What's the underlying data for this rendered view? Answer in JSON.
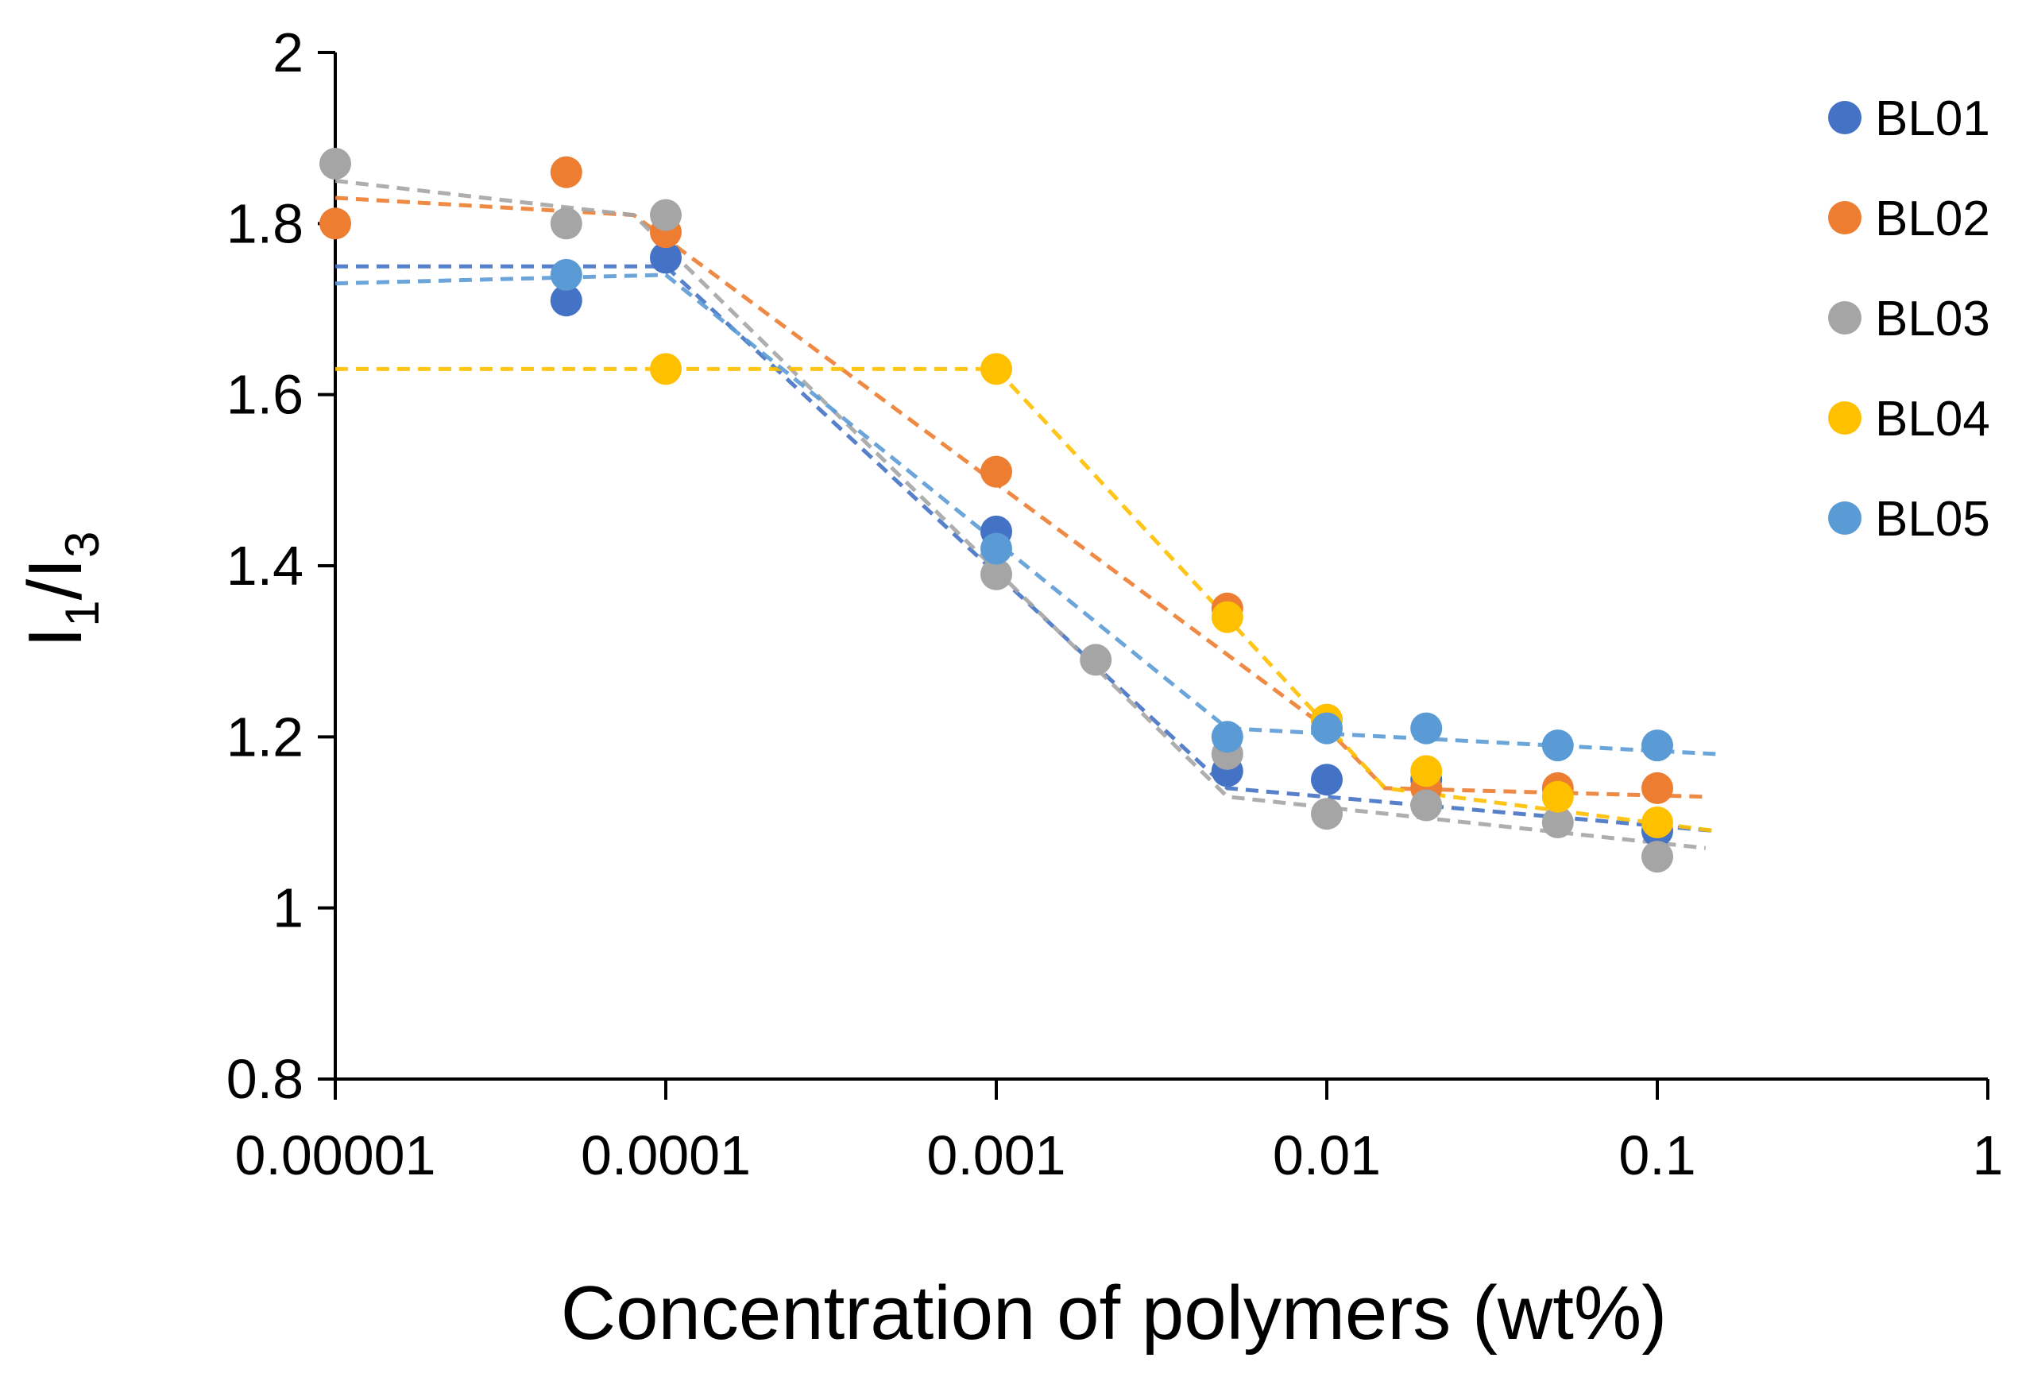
{
  "chart_data": {
    "type": "scatter",
    "title": "",
    "xlabel": "Concentration of polymers (wt%)",
    "ylabel": {
      "main": "I",
      "sub1": "1",
      "sep": "/I",
      "sub2": "3"
    },
    "xscale": "log",
    "xlim": [
      1e-05,
      1
    ],
    "ylim": [
      0.8,
      2
    ],
    "xticks": [
      1e-05,
      0.0001,
      0.001,
      0.01,
      0.1,
      1
    ],
    "xtick_labels": [
      "0.00001",
      "0.0001",
      "0.001",
      "0.01",
      "0.1",
      "1"
    ],
    "yticks": [
      0.8,
      1.0,
      1.2,
      1.4,
      1.6,
      1.8,
      2.0
    ],
    "ytick_labels": [
      "0.8",
      "1",
      "1.2",
      "1.4",
      "1.6",
      "1.8",
      "2"
    ],
    "grid": false,
    "legend_position": "right",
    "series": [
      {
        "name": "BL01",
        "color": "#4472C4",
        "points": [
          [
            5e-05,
            1.71
          ],
          [
            0.0001,
            1.76
          ],
          [
            0.001,
            1.44
          ],
          [
            0.005,
            1.16
          ],
          [
            0.01,
            1.15
          ],
          [
            0.02,
            1.15
          ],
          [
            0.1,
            1.09
          ]
        ],
        "trendline": [
          [
            1e-05,
            1.75
          ],
          [
            0.0001,
            1.75
          ],
          [
            0.005,
            1.14
          ],
          [
            0.15,
            1.09
          ]
        ]
      },
      {
        "name": "BL02",
        "color": "#ED7D31",
        "points": [
          [
            1e-05,
            1.8
          ],
          [
            5e-05,
            1.86
          ],
          [
            0.0001,
            1.79
          ],
          [
            0.001,
            1.51
          ],
          [
            0.005,
            1.35
          ],
          [
            0.01,
            1.22
          ],
          [
            0.02,
            1.14
          ],
          [
            0.05,
            1.14
          ],
          [
            0.1,
            1.14
          ]
        ],
        "trendline": [
          [
            1e-05,
            1.83
          ],
          [
            8e-05,
            1.81
          ],
          [
            0.01,
            1.21
          ],
          [
            0.015,
            1.14
          ],
          [
            0.14,
            1.13
          ]
        ]
      },
      {
        "name": "BL03",
        "color": "#A5A5A5",
        "points": [
          [
            1e-05,
            1.87
          ],
          [
            5e-05,
            1.8
          ],
          [
            0.0001,
            1.81
          ],
          [
            0.001,
            1.39
          ],
          [
            0.002,
            1.29
          ],
          [
            0.005,
            1.18
          ],
          [
            0.01,
            1.11
          ],
          [
            0.02,
            1.12
          ],
          [
            0.05,
            1.1
          ],
          [
            0.1,
            1.06
          ]
        ],
        "trendline": [
          [
            1e-05,
            1.85
          ],
          [
            8e-05,
            1.81
          ],
          [
            0.005,
            1.13
          ],
          [
            0.14,
            1.07
          ]
        ]
      },
      {
        "name": "BL04",
        "color": "#FFC000",
        "points": [
          [
            0.0001,
            1.63
          ],
          [
            0.001,
            1.63
          ],
          [
            0.005,
            1.34
          ],
          [
            0.01,
            1.22
          ],
          [
            0.02,
            1.16
          ],
          [
            0.05,
            1.13
          ],
          [
            0.1,
            1.1
          ]
        ],
        "trendline": [
          [
            1e-05,
            1.63
          ],
          [
            0.001,
            1.63
          ],
          [
            0.015,
            1.14
          ],
          [
            0.15,
            1.09
          ]
        ]
      },
      {
        "name": "BL05",
        "color": "#5B9BD5",
        "points": [
          [
            5e-05,
            1.74
          ],
          [
            0.001,
            1.42
          ],
          [
            0.005,
            1.2
          ],
          [
            0.01,
            1.21
          ],
          [
            0.02,
            1.21
          ],
          [
            0.05,
            1.19
          ],
          [
            0.1,
            1.19
          ]
        ],
        "trendline": [
          [
            1e-05,
            1.73
          ],
          [
            0.0001,
            1.74
          ],
          [
            0.005,
            1.21
          ],
          [
            0.15,
            1.18
          ]
        ]
      }
    ]
  }
}
